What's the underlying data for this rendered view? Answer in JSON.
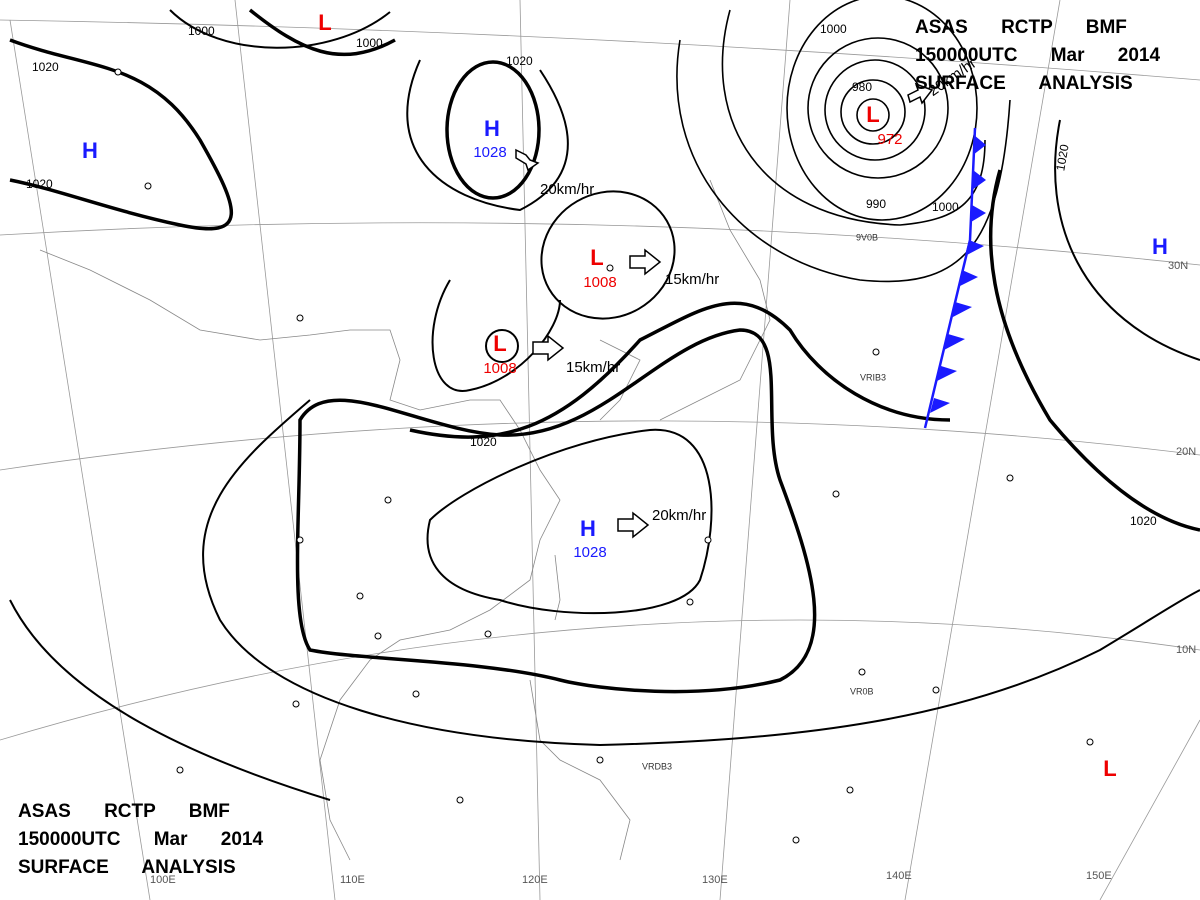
{
  "header_top": {
    "lines": [
      "ASAS RCTP BMF",
      "150000UTC Mar 2014",
      "SURFACE ANALYSIS"
    ]
  },
  "header_bottom": {
    "lines": [
      "ASAS RCTP BMF",
      "150000UTC Mar 2014",
      "SURFACE ANALYSIS"
    ]
  },
  "pressure_centers": [
    {
      "symbol": "L"
    },
    {
      "symbol": "H"
    },
    {
      "symbol": "H",
      "value": "1028"
    },
    {
      "symbol": "L",
      "value": "1008"
    },
    {
      "symbol": "L",
      "value": "1008"
    },
    {
      "symbol": "H",
      "value": "1028"
    },
    {
      "symbol": "L",
      "value": "972"
    },
    {
      "symbol": "H"
    },
    {
      "symbol": "L"
    }
  ],
  "isobar_labels": [
    "1000",
    "1000",
    "1020",
    "1020",
    "1020",
    "1020",
    "1020",
    "1020",
    "1000",
    "1000",
    "980",
    "990"
  ],
  "motion_labels": [
    "20km/hr",
    "15km/hr",
    "15km/hr",
    "20km/hr",
    "20km/hr"
  ],
  "grid_labels": [
    "10N",
    "20N",
    "30N",
    "100E",
    "110E",
    "120E",
    "130E",
    "140E",
    "150E"
  ],
  "station_ids": [
    "VRDB3",
    "VR0B",
    "VRIB3",
    "9V0B"
  ]
}
